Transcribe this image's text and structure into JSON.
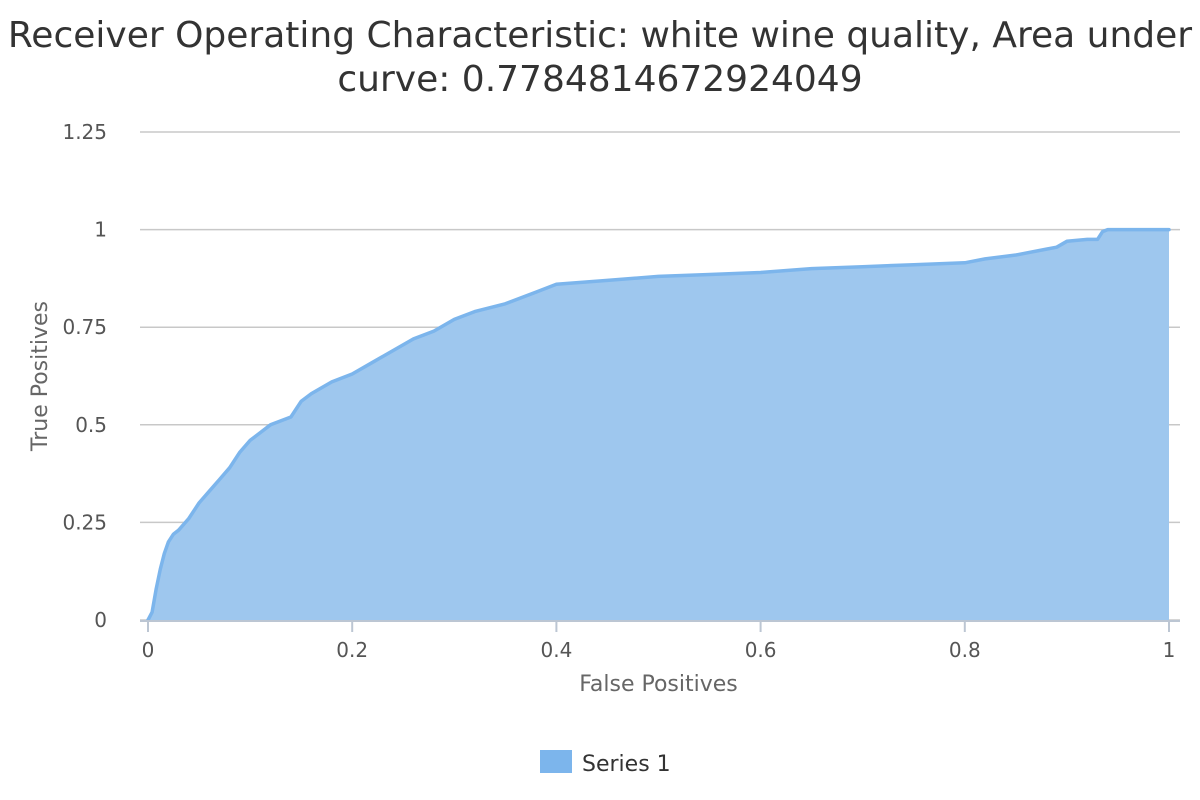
{
  "chart_data": {
    "type": "area",
    "title": "Receiver Operating Characteristic: white wine quality, Area under curve: 0.7784814672924049",
    "xlabel": "False Positives",
    "ylabel": "True Positives",
    "xlim": [
      0,
      1
    ],
    "ylim": [
      0,
      1.25
    ],
    "x_ticks": [
      "0",
      "0.2",
      "0.4",
      "0.6",
      "0.8",
      "1"
    ],
    "y_ticks": [
      "0",
      "0.25",
      "0.5",
      "0.75",
      "1",
      "1.25"
    ],
    "grid": true,
    "legend": "bottom-center",
    "series": [
      {
        "name": "Series 1",
        "color": "#7cb5ec",
        "fill_color": "#9ec7ee",
        "x": [
          0,
          0.004,
          0.008,
          0.012,
          0.016,
          0.02,
          0.025,
          0.03,
          0.04,
          0.05,
          0.06,
          0.07,
          0.08,
          0.09,
          0.1,
          0.11,
          0.12,
          0.13,
          0.14,
          0.15,
          0.16,
          0.18,
          0.2,
          0.22,
          0.24,
          0.26,
          0.28,
          0.3,
          0.32,
          0.35,
          0.38,
          0.4,
          0.45,
          0.5,
          0.55,
          0.6,
          0.65,
          0.7,
          0.75,
          0.8,
          0.82,
          0.85,
          0.88,
          0.89,
          0.9,
          0.92,
          0.93,
          0.935,
          0.94,
          0.95,
          1
        ],
        "y": [
          0,
          0.02,
          0.08,
          0.13,
          0.17,
          0.2,
          0.22,
          0.23,
          0.26,
          0.3,
          0.33,
          0.36,
          0.39,
          0.43,
          0.46,
          0.48,
          0.5,
          0.51,
          0.52,
          0.56,
          0.58,
          0.61,
          0.63,
          0.66,
          0.69,
          0.72,
          0.74,
          0.77,
          0.79,
          0.81,
          0.84,
          0.86,
          0.87,
          0.88,
          0.885,
          0.89,
          0.9,
          0.905,
          0.91,
          0.915,
          0.925,
          0.935,
          0.95,
          0.955,
          0.97,
          0.975,
          0.975,
          0.995,
          1.0,
          1.0,
          1.0
        ]
      }
    ]
  }
}
